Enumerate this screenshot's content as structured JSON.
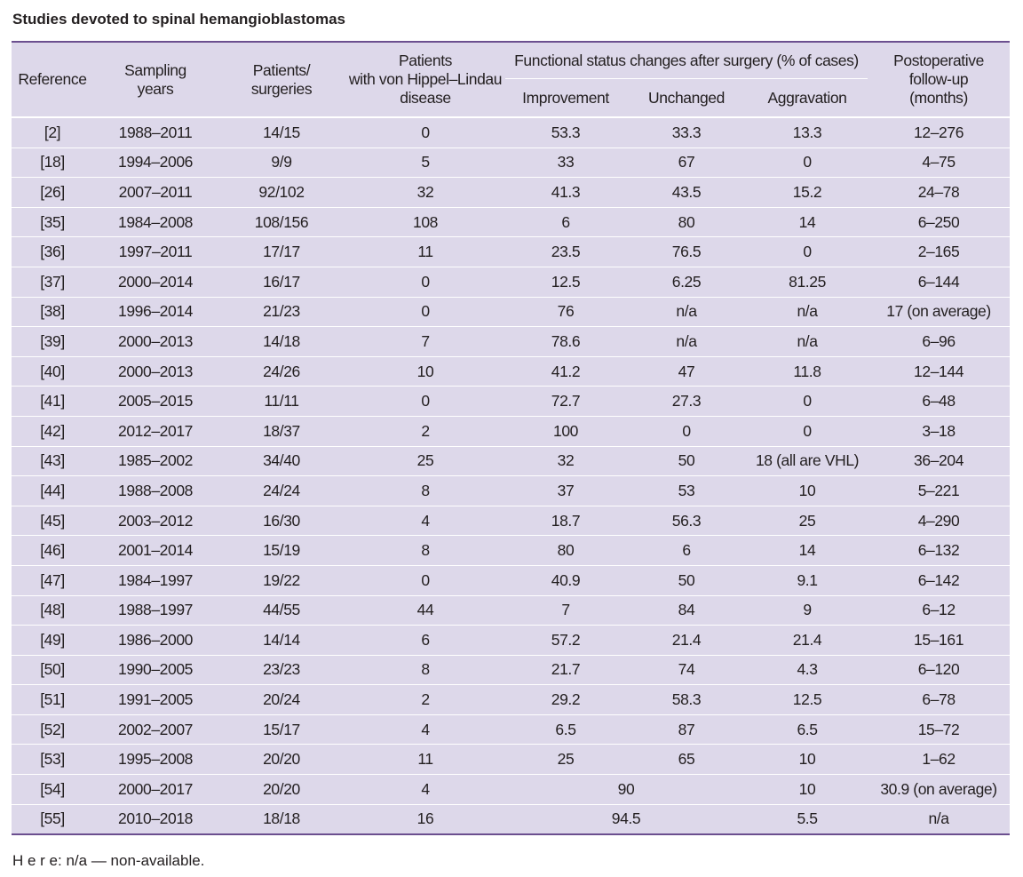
{
  "title": "Studies devoted to spinal hemangioblastomas",
  "headers": {
    "reference": "Reference",
    "sampling_years": [
      "Sampling",
      "years"
    ],
    "patients_surgeries": [
      "Patients/",
      "surgeries"
    ],
    "vhl_patients": [
      "Patients",
      "with von Hippel–Lindau",
      "disease"
    ],
    "functional_group": "Functional status changes after surgery (% of cases)",
    "improvement": "Improvement",
    "unchanged": "Unchanged",
    "aggravation": "Aggravation",
    "follow_up": [
      "Postoperative",
      "follow-up",
      "(months)"
    ]
  },
  "rows": [
    {
      "ref": "[2]",
      "years": "1988–2011",
      "ps": "14/15",
      "vhl": "0",
      "imp": "53.3",
      "unch": "33.3",
      "agg": "13.3",
      "fu": "12–276"
    },
    {
      "ref": "[18]",
      "years": "1994–2006",
      "ps": "9/9",
      "vhl": "5",
      "imp": "33",
      "unch": "67",
      "agg": "0",
      "fu": "4–75"
    },
    {
      "ref": "[26]",
      "years": "2007–2011",
      "ps": "92/102",
      "vhl": "32",
      "imp": "41.3",
      "unch": "43.5",
      "agg": "15.2",
      "fu": "24–78"
    },
    {
      "ref": "[35]",
      "years": "1984–2008",
      "ps": "108/156",
      "vhl": "108",
      "imp": "6",
      "unch": "80",
      "agg": "14",
      "fu": "6–250"
    },
    {
      "ref": "[36]",
      "years": "1997–2011",
      "ps": "17/17",
      "vhl": "11",
      "imp": "23.5",
      "unch": "76.5",
      "agg": "0",
      "fu": "2–165"
    },
    {
      "ref": "[37]",
      "years": "2000–2014",
      "ps": "16/17",
      "vhl": "0",
      "imp": "12.5",
      "unch": "6.25",
      "agg": "81.25",
      "fu": "6–144"
    },
    {
      "ref": "[38]",
      "years": "1996–2014",
      "ps": "21/23",
      "vhl": "0",
      "imp": "76",
      "unch": "n/a",
      "agg": "n/a",
      "fu": "17 (on average)"
    },
    {
      "ref": "[39]",
      "years": "2000–2013",
      "ps": "14/18",
      "vhl": "7",
      "imp": "78.6",
      "unch": "n/a",
      "agg": "n/a",
      "fu": "6–96"
    },
    {
      "ref": "[40]",
      "years": "2000–2013",
      "ps": "24/26",
      "vhl": "10",
      "imp": "41.2",
      "unch": "47",
      "agg": "11.8",
      "fu": "12–144"
    },
    {
      "ref": "[41]",
      "years": "2005–2015",
      "ps": "11/11",
      "vhl": "0",
      "imp": "72.7",
      "unch": "27.3",
      "agg": "0",
      "fu": "6–48"
    },
    {
      "ref": "[42]",
      "years": "2012–2017",
      "ps": "18/37",
      "vhl": "2",
      "imp": "100",
      "unch": "0",
      "agg": "0",
      "fu": "3–18"
    },
    {
      "ref": "[43]",
      "years": "1985–2002",
      "ps": "34/40",
      "vhl": "25",
      "imp": "32",
      "unch": "50",
      "agg": "18 (all are VHL)",
      "fu": "36–204"
    },
    {
      "ref": "[44]",
      "years": "1988–2008",
      "ps": "24/24",
      "vhl": "8",
      "imp": "37",
      "unch": "53",
      "agg": "10",
      "fu": "5–221"
    },
    {
      "ref": "[45]",
      "years": "2003–2012",
      "ps": "16/30",
      "vhl": "4",
      "imp": "18.7",
      "unch": "56.3",
      "agg": "25",
      "fu": "4–290"
    },
    {
      "ref": "[46]",
      "years": "2001–2014",
      "ps": "15/19",
      "vhl": "8",
      "imp": "80",
      "unch": "6",
      "agg": "14",
      "fu": "6–132"
    },
    {
      "ref": "[47]",
      "years": "1984–1997",
      "ps": "19/22",
      "vhl": "0",
      "imp": "40.9",
      "unch": "50",
      "agg": "9.1",
      "fu": "6–142"
    },
    {
      "ref": "[48]",
      "years": "1988–1997",
      "ps": "44/55",
      "vhl": "44",
      "imp": "7",
      "unch": "84",
      "agg": "9",
      "fu": "6–12"
    },
    {
      "ref": "[49]",
      "years": "1986–2000",
      "ps": "14/14",
      "vhl": "6",
      "imp": "57.2",
      "unch": "21.4",
      "agg": "21.4",
      "fu": "15–161"
    },
    {
      "ref": "[50]",
      "years": "1990–2005",
      "ps": "23/23",
      "vhl": "8",
      "imp": "21.7",
      "unch": "74",
      "agg": "4.3",
      "fu": "6–120"
    },
    {
      "ref": "[51]",
      "years": "1991–2005",
      "ps": "20/24",
      "vhl": "2",
      "imp": "29.2",
      "unch": "58.3",
      "agg": "12.5",
      "fu": "6–78"
    },
    {
      "ref": "[52]",
      "years": "2002–2007",
      "ps": "15/17",
      "vhl": "4",
      "imp": "6.5",
      "unch": "87",
      "agg": "6.5",
      "fu": "15–72"
    },
    {
      "ref": "[53]",
      "years": "1995–2008",
      "ps": "20/20",
      "vhl": "11",
      "imp": "25",
      "unch": "65",
      "agg": "10",
      "fu": "1–62"
    }
  ],
  "merged_rows": [
    {
      "ref": "[54]",
      "years": "2000–2017",
      "ps": "20/20",
      "vhl": "4",
      "imp_unch": "90",
      "agg": "10",
      "fu": "30.9 (on average)"
    },
    {
      "ref": "[55]",
      "years": "2010–2018",
      "ps": "18/18",
      "vhl": "16",
      "imp_unch": "94.5",
      "agg": "5.5",
      "fu": "n/a"
    }
  ],
  "note": "H e r e: n/a — non-available.",
  "colors": {
    "table_bg": "#ddd8ea",
    "rule": "#6b4f8f",
    "text": "#231f20"
  }
}
